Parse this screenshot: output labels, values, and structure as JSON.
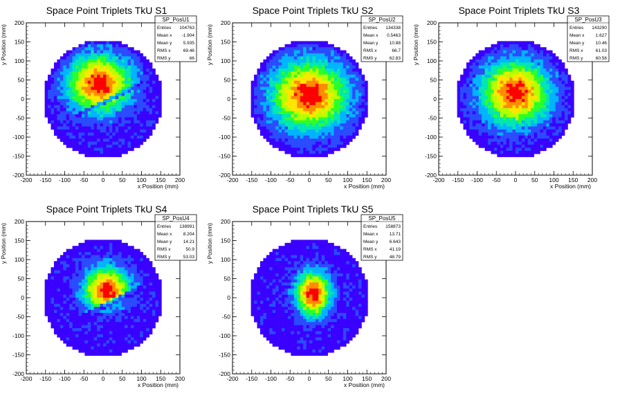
{
  "chart_data": [
    {
      "type": "heatmap",
      "title": "Space Point Triplets TkU S1",
      "xlabel": "x Position (mm)",
      "ylabel": "y Position (mm)",
      "xlim": [
        -200,
        200
      ],
      "ylim": [
        -200,
        200
      ],
      "xticks": [
        "-200",
        "-150",
        "-100",
        "-50",
        "0",
        "50",
        "100",
        "150",
        "200"
      ],
      "yticks": [
        "-200",
        "-150",
        "-100",
        "-50",
        "0",
        "50",
        "100",
        "150",
        "200"
      ],
      "colormap": [
        "#3a00ff",
        "#2a4bff",
        "#00b4ff",
        "#00e6b4",
        "#2aff2a",
        "#b4ff00",
        "#ffe600",
        "#ff8c00",
        "#ff0000"
      ],
      "distribution": {
        "shape": "disc",
        "radius": 155,
        "peak": [
          -10,
          40
        ],
        "sigma": [
          55,
          50
        ],
        "stripe": true,
        "stripe_slope": 0.5,
        "stripe_offset": -10
      },
      "stats": {
        "name": "SP_PosU1",
        "rows": [
          [
            "Entries",
            "104763"
          ],
          [
            "Mean x",
            "-1.904"
          ],
          [
            "Mean y",
            "5.935"
          ],
          [
            "RMS x",
            "69.46"
          ],
          [
            "RMS y",
            "66"
          ]
        ]
      }
    },
    {
      "type": "heatmap",
      "title": "Space Point Triplets TkU S2",
      "xlabel": "x Position (mm)",
      "ylabel": "y Position (mm)",
      "xlim": [
        -200,
        200
      ],
      "ylim": [
        -200,
        200
      ],
      "xticks": [
        "-200",
        "-150",
        "-100",
        "-50",
        "0",
        "50",
        "100",
        "150",
        "200"
      ],
      "yticks": [
        "-200",
        "-150",
        "-100",
        "-50",
        "0",
        "50",
        "100",
        "150",
        "200"
      ],
      "distribution": {
        "shape": "disc",
        "radius": 155,
        "peak": [
          0,
          10
        ],
        "sigma": [
          65,
          60
        ],
        "stripe": false
      },
      "stats": {
        "name": "SP_PosU2",
        "rows": [
          [
            "Entries",
            "134338"
          ],
          [
            "Mean x",
            "0.5463"
          ],
          [
            "Mean y",
            "10.88"
          ],
          [
            "RMS x",
            "66.7"
          ],
          [
            "RMS y",
            "62.83"
          ]
        ]
      }
    },
    {
      "type": "heatmap",
      "title": "Space Point Triplets TkU S3",
      "xlabel": "x Position (mm)",
      "ylabel": "y Position (mm)",
      "xlim": [
        -200,
        200
      ],
      "ylim": [
        -200,
        200
      ],
      "xticks": [
        "-200",
        "-150",
        "-100",
        "-50",
        "0",
        "50",
        "100",
        "150",
        "200"
      ],
      "yticks": [
        "-200",
        "-150",
        "-100",
        "-50",
        "0",
        "50",
        "100",
        "150",
        "200"
      ],
      "distribution": {
        "shape": "disc",
        "radius": 155,
        "peak": [
          0,
          15
        ],
        "sigma": [
          58,
          55
        ],
        "stripe": false
      },
      "stats": {
        "name": "SP_PosU3",
        "rows": [
          [
            "Entries",
            "143290"
          ],
          [
            "Mean x",
            "1.627"
          ],
          [
            "Mean y",
            "10.46"
          ],
          [
            "RMS x",
            "61.03"
          ],
          [
            "RMS y",
            "60.56"
          ]
        ]
      }
    },
    {
      "type": "heatmap",
      "title": "Space Point Triplets TkU S4",
      "xlabel": "x Position (mm)",
      "ylabel": "y Position (mm)",
      "xlim": [
        -200,
        200
      ],
      "ylim": [
        -200,
        200
      ],
      "xticks": [
        "-200",
        "-150",
        "-100",
        "-50",
        "0",
        "50",
        "100",
        "150",
        "200"
      ],
      "yticks": [
        "-200",
        "-150",
        "-100",
        "-50",
        "0",
        "50",
        "100",
        "150",
        "200"
      ],
      "distribution": {
        "shape": "disc",
        "radius": 155,
        "peak": [
          10,
          20
        ],
        "sigma": [
          40,
          40
        ],
        "stripe": true,
        "stripe_slope": 0.5,
        "stripe_offset": -25
      },
      "stats": {
        "name": "SP_PosU4",
        "rows": [
          [
            "Entries",
            "138991"
          ],
          [
            "Mean x",
            "8.204"
          ],
          [
            "Mean y",
            "14.21"
          ],
          [
            "RMS x",
            "50.9"
          ],
          [
            "RMS y",
            "53.03"
          ]
        ]
      }
    },
    {
      "type": "heatmap",
      "title": "Space Point Triplets TkU S5",
      "xlabel": "x Position (mm)",
      "ylabel": "y Position (mm)",
      "xlim": [
        -200,
        200
      ],
      "ylim": [
        -200,
        200
      ],
      "xticks": [
        "-200",
        "-150",
        "-100",
        "-50",
        "0",
        "50",
        "100",
        "150",
        "200"
      ],
      "yticks": [
        "-200",
        "-150",
        "-100",
        "-50",
        "0",
        "50",
        "100",
        "150",
        "200"
      ],
      "distribution": {
        "shape": "disc",
        "radius": 155,
        "peak": [
          10,
          10
        ],
        "sigma": [
          30,
          40
        ],
        "stripe": false
      },
      "stats": {
        "name": "SP_PosU5",
        "rows": [
          [
            "Entries",
            "158873"
          ],
          [
            "Mean x",
            "13.71"
          ],
          [
            "Mean y",
            "6.643"
          ],
          [
            "RMS x",
            "41.19"
          ],
          [
            "RMS y",
            "48.79"
          ]
        ]
      }
    }
  ]
}
